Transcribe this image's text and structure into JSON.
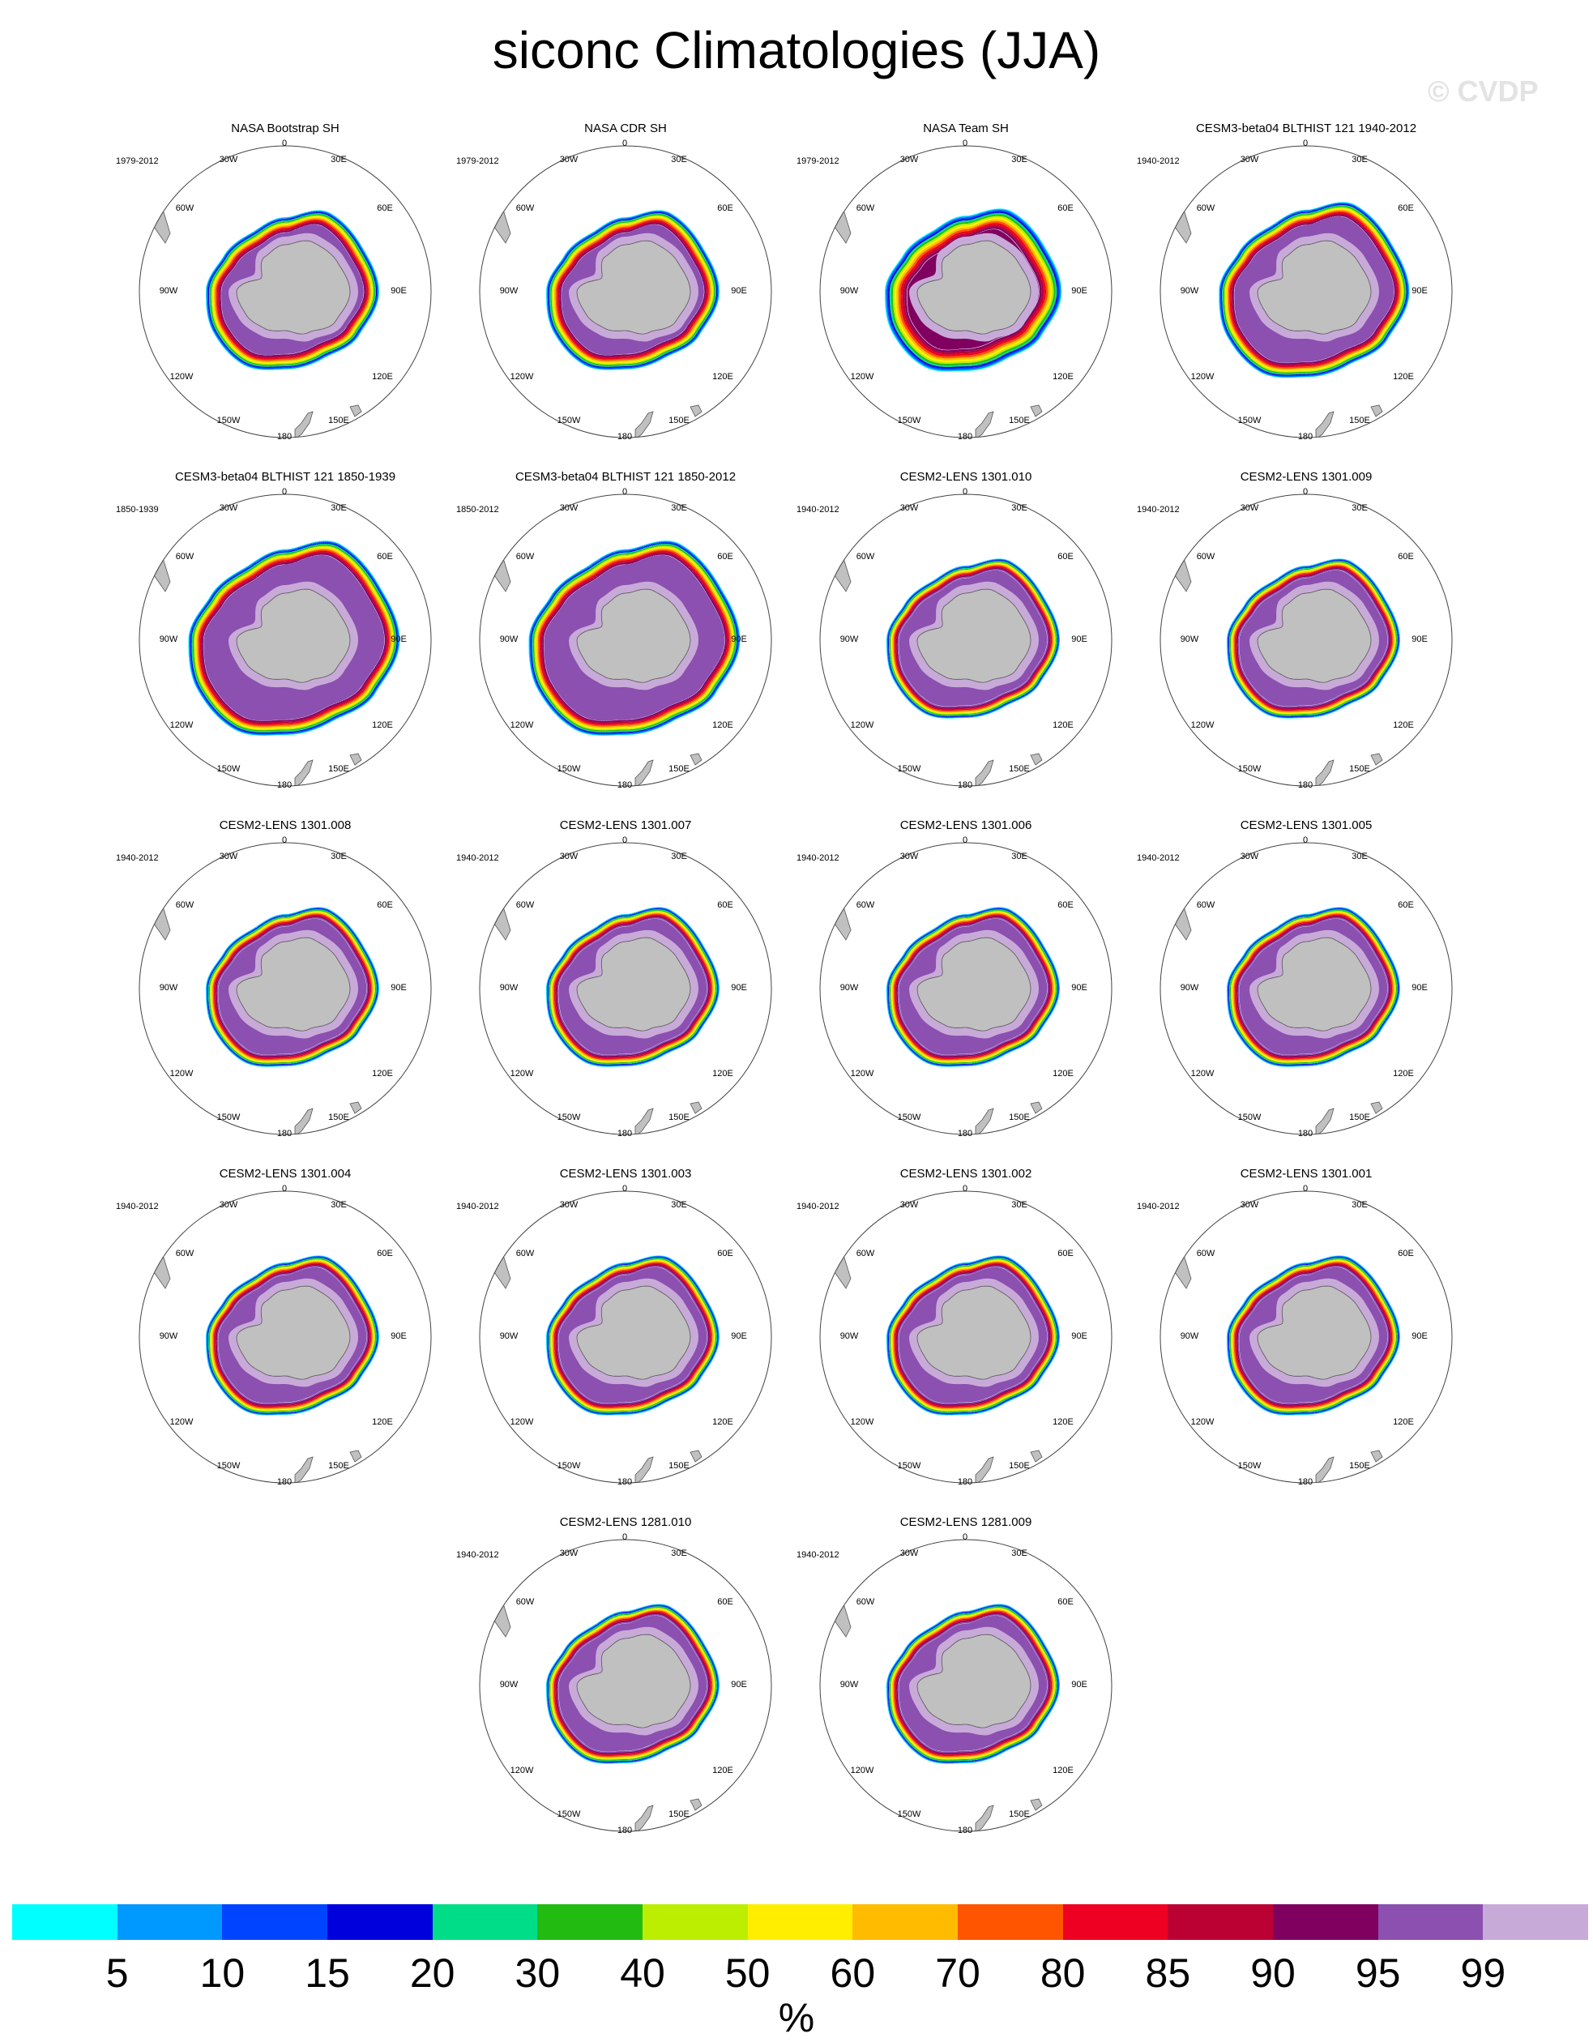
{
  "title": "siconc Climatologies (JJA)",
  "watermark": "© CVDP",
  "map_labels": {
    "lon_labels": [
      "0",
      "30E",
      "60E",
      "90E",
      "120E",
      "150E",
      "180",
      "150W",
      "120W",
      "90W",
      "60W",
      "30W"
    ]
  },
  "panels": [
    {
      "title": "NASA Bootstrap SH",
      "period": "1979-2012",
      "style": "obs"
    },
    {
      "title": "NASA CDR SH",
      "period": "1979-2012",
      "style": "obs"
    },
    {
      "title": "NASA Team SH",
      "period": "1979-2012",
      "style": "obs-team"
    },
    {
      "title": "CESM3-beta04 BLTHIST 121 1940-2012",
      "period": "1940-2012",
      "style": "beta"
    },
    {
      "title": "CESM3-beta04 BLTHIST 121 1850-1939",
      "period": "1850-1939",
      "style": "beta-large"
    },
    {
      "title": "CESM3-beta04 BLTHIST 121 1850-2012",
      "period": "1850-2012",
      "style": "beta-large"
    },
    {
      "title": "CESM2-LENS 1301.010",
      "period": "1940-2012",
      "style": "lens"
    },
    {
      "title": "CESM2-LENS 1301.009",
      "period": "1940-2012",
      "style": "lens"
    },
    {
      "title": "CESM2-LENS 1301.008",
      "period": "1940-2012",
      "style": "lens"
    },
    {
      "title": "CESM2-LENS 1301.007",
      "period": "1940-2012",
      "style": "lens"
    },
    {
      "title": "CESM2-LENS 1301.006",
      "period": "1940-2012",
      "style": "lens"
    },
    {
      "title": "CESM2-LENS 1301.005",
      "period": "1940-2012",
      "style": "lens"
    },
    {
      "title": "CESM2-LENS 1301.004",
      "period": "1940-2012",
      "style": "lens"
    },
    {
      "title": "CESM2-LENS 1301.003",
      "period": "1940-2012",
      "style": "lens"
    },
    {
      "title": "CESM2-LENS 1301.002",
      "period": "1940-2012",
      "style": "lens"
    },
    {
      "title": "CESM2-LENS 1301.001",
      "period": "1940-2012",
      "style": "lens"
    },
    {
      "title": "CESM2-LENS 1281.010",
      "period": "1940-2012",
      "style": "lens"
    },
    {
      "title": "CESM2-LENS 1281.009",
      "period": "1940-2012",
      "style": "lens"
    }
  ],
  "colorbar": {
    "units": "%",
    "levels": [
      "5",
      "10",
      "15",
      "20",
      "30",
      "40",
      "50",
      "60",
      "70",
      "80",
      "85",
      "90",
      "95",
      "99"
    ],
    "colors": [
      "#00ffff",
      "#0099ff",
      "#0044ff",
      "#0000dd",
      "#00dd88",
      "#22bb11",
      "#bbee00",
      "#ffee00",
      "#ffbb00",
      "#ff5500",
      "#ee0022",
      "#bb0033",
      "#800060",
      "#8b50b0",
      "#c8aad8"
    ]
  }
}
